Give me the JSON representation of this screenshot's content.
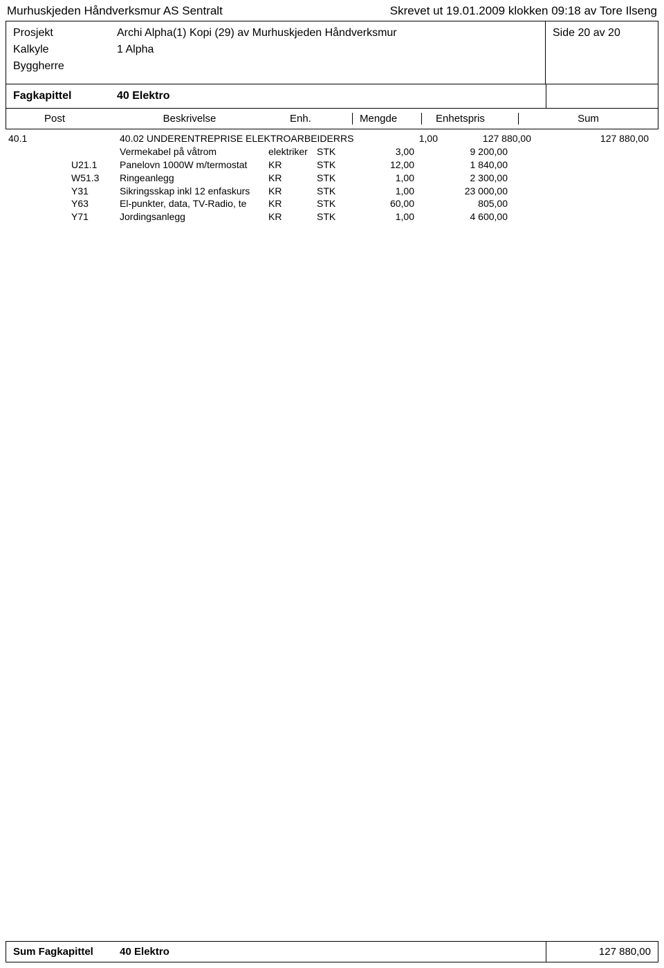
{
  "header": {
    "company": "Murhuskjeden Håndverksmur AS Sentralt",
    "print_info": "Skrevet ut 19.01.2009 klokken 09:18 av Tore Ilseng"
  },
  "info": {
    "prosjekt_label": "Prosjekt",
    "prosjekt_value": "Archi Alpha(1) Kopi (29) av Murhuskjeden Håndverksmur",
    "kalkyle_label": "Kalkyle",
    "kalkyle_value": "1 Alpha",
    "byggherre_label": "Byggherre",
    "byggherre_value": "",
    "side": "Side 20 av 20"
  },
  "fagkapittel": {
    "label": "Fagkapittel",
    "value": "40 Elektro"
  },
  "columns": {
    "post": "Post",
    "beskrivelse": "Beskrivelse",
    "enh": "Enh.",
    "mengde": "Mengde",
    "enhetspris": "Enhetspris",
    "sum": "Sum"
  },
  "main_row": {
    "post": "40.1",
    "code": "",
    "desc": "40.02 UNDERENTREPRISE ELEKTROARBEIDER",
    "kr": "",
    "enh": "RS",
    "mengde": "1,00",
    "pris": "127 880,00",
    "sum": "127 880,00"
  },
  "rows": [
    {
      "code": "",
      "desc": "Vermekabel på våtrom",
      "kr": "elektriker",
      "enh": "STK",
      "mengde": "3,00",
      "pris": "9 200,00"
    },
    {
      "code": "U21.1",
      "desc": "Panelovn 1000W m/termostat",
      "kr": "KR",
      "enh": "STK",
      "mengde": "12,00",
      "pris": "1 840,00"
    },
    {
      "code": "W51.3",
      "desc": "Ringeanlegg",
      "kr": "KR",
      "enh": "STK",
      "mengde": "1,00",
      "pris": "2 300,00"
    },
    {
      "code": "Y31",
      "desc": "Sikringsskap inkl 12 enfaskurs",
      "kr": "KR",
      "enh": "STK",
      "mengde": "1,00",
      "pris": "23 000,00"
    },
    {
      "code": "Y63",
      "desc": "El-punkter, data, TV-Radio, te",
      "kr": "KR",
      "enh": "STK",
      "mengde": "60,00",
      "pris": "805,00"
    },
    {
      "code": "Y71",
      "desc": "Jordingsanlegg",
      "kr": "KR",
      "enh": "STK",
      "mengde": "1,00",
      "pris": "4 600,00"
    }
  ],
  "footer": {
    "label": "Sum Fagkapittel",
    "value": "40 Elektro",
    "sum": "127 880,00"
  }
}
